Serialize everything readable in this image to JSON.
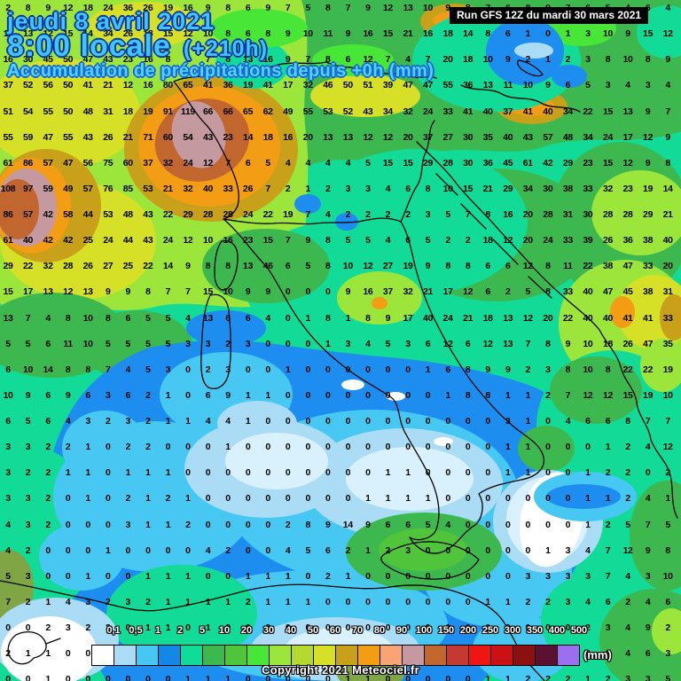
{
  "header": {
    "date_line": "jeudi 8 avril 2021",
    "time_line": "8:00 locale",
    "forecast_offset": "(+210h)",
    "title": "Accumulation de précipitations depuis +0h (mm)",
    "run_info": "Run GFS 12Z du mardi 30 mars 2021"
  },
  "footer": {
    "copyright": "Copyright 2021 Meteociel.fr",
    "unit_label": "(mm)"
  },
  "legend": {
    "values": [
      "0,1",
      "0,5",
      "1",
      "2",
      "5",
      "10",
      "20",
      "30",
      "40",
      "50",
      "60",
      "70",
      "80",
      "90",
      "100",
      "150",
      "200",
      "250",
      "300",
      "350",
      "400",
      "500"
    ],
    "colors": [
      "#ffffff",
      "#aadcf6",
      "#46c8f2",
      "#1388e8",
      "#10dc98",
      "#3cb84e",
      "#50c43a",
      "#47e637",
      "#9ce63c",
      "#b4d92e",
      "#d6e027",
      "#c8a01a",
      "#f29d14",
      "#f8a474",
      "#c49aa0",
      "#c2662f",
      "#c43a32",
      "#ee1512",
      "#cc1115",
      "#8c1010",
      "#5c1030",
      "#9c6ef0"
    ]
  },
  "map_grid": {
    "cols": 34,
    "rows": [
      "2 8 9 12 18 24 36 26 19 16 9 8 6 9 7 5 8 7 9 12 13 10 9 8 7 6 8 9 7 6 5 4 6 4",
      "11 13 12 15 14 34 26 18 15 12 10 8 6 8 9 10 11 9 16 15 21 16 18 14 8 6 1 0 1 3 10 9 15 12",
      "16 30 45 50 47 43 23 16 8 9 7 8 13 16 9 7 8 6 12 7 4 7 20 18 10 9 2 1 2 3 8 10 8 9",
      "37 52 56 50 41 21 12 16 80 65 41 36 19 41 17 32 46 50 51 39 47 47 55 36 13 11 10 9 6 5 3 4 3 4",
      "51 54 55 50 48 31 18 19 91 119 66 66 65 62 49 55 53 52 43 34 32 24 33 41 40 37 41 40 34 22 15 13 9 7",
      "55 59 47 55 43 26 21 71 60 54 43 23 14 18 16 20 13 13 12 12 20 37 27 30 35 40 43 57 48 34 24 17 12 9",
      "61 86 57 47 56 75 60 37 32 24 12 7 6 5 4 4 4 4 5 15 15 29 28 30 36 45 61 42 29 23 15 12 9 8",
      "108 97 59 49 57 76 85 53 21 32 40 33 26 7 2 1 2 3 3 4 6 8 10 15 21 29 34 30 38 33 32 23 19 14",
      "86 57 42 58 44 53 48 43 22 29 28 28 24 22 19 7 4 2 2 2 2 3 5 7 8 16 20 28 31 30 28 28 29 21",
      "61 40 42 42 25 24 44 43 24 12 10 16 23 15 7 9 8 5 5 4 6 5 2 2 18 12 20 24 33 39 26 36 38 40",
      "29 22 32 28 26 27 25 22 14 9 8 8 13 46 6 5 8 10 12 27 19 9 8 8 6 6 12 8 11 22 38 47 33 20",
      "15 17 13 12 13 9 9 8 7 7 15 10 9 9 0 0 0 9 16 37 32 21 17 12 6 2 5 8 33 40 47 45 38 31",
      "13 7 4 8 10 8 6 5 5 4 13 6 6 4 0 1 8 1 8 9 17 40 24 21 18 13 12 20 22 40 40 41 41 33",
      "5 5 6 11 10 5 5 5 5 3 3 2 3 0 0 0 1 3 4 5 3 6 12 6 12 13 7 8 9 10 18 26 47 35",
      "6 10 14 8 8 7 4 5 3 0 2 3 0 0 1 0 0 0 0 0 0 1 6 8 9 9 2 3 8 10 8 22 22 19",
      "10 9 6 9 6 3 6 2 1 0 6 9 1 1 0 0 0 0 0 0 0 0 1 8 8 1 1 2 7 12 12 15 19 10",
      "6 5 6 4 3 2 3 2 1 1 4 4 1 0 0 0 0 0 0 0 0 0 0 0 0 3 1 0 4 6 6 8 7 7",
      "3 3 2 2 1 0 2 2 0 0 0 1 0 0 0 0 0 0 0 0 0 0 0 0 0 1 1 0 0 0 1 2 4 12",
      "3 2 2 1 1 0 1 1 1 0 0 0 0 0 0 0 0 0 0 1 1 0 0 0 0 1 1 0 0 1 2 2 0 2",
      "3 3 2 0 1 0 2 1 2 1 0 0 0 0 0 0 0 0 1 1 1 1 0 0 0 0 0 0 0 1 1 2 4 1",
      "4 3 2 0 0 0 3 1 1 2 0 0 0 0 2 8 9 14 9 6 6 5 4 0 0 0 0 0 0 1 2 5 7 5",
      "4 2 0 0 0 1 0 0 0 0 4 2 0 0 4 5 6 2 1 2 3 0 0 0 0 0 0 1 3 4 7 12 9 8",
      "5 3 0 0 1 0 0 1 1 1 0 0 1 1 1 0 2 1 0 0 0 0 0 0 0 0 3 3 3 3 7 4 3 10",
      "7 2 1 4 3 2 3 2 1 1 1 1 2 1 1 1 0 0 0 0 0 0 0 0 1 1 2 2 3 4 6 2 4 6",
      "0 0 2 3 2 3 0 1 1 0 1 0 0 0 0 0 0 0 0 0 0 0 0 0 0 0 0 0 0 2 3 4 9 2",
      "2 1 1 0 0 0 0 0 0 0 0 0 0 0 0 0 0 0 0 0 0 0 0 0 0 0 0 0 0 0 2 4 6 3",
      "0 0 1 0 0 0 0 0 0 1 1 1 0 0 0 0 0 1 1 0 0 0 0 0 1 1 2 2 2 1 2 3 3 5"
    ]
  }
}
